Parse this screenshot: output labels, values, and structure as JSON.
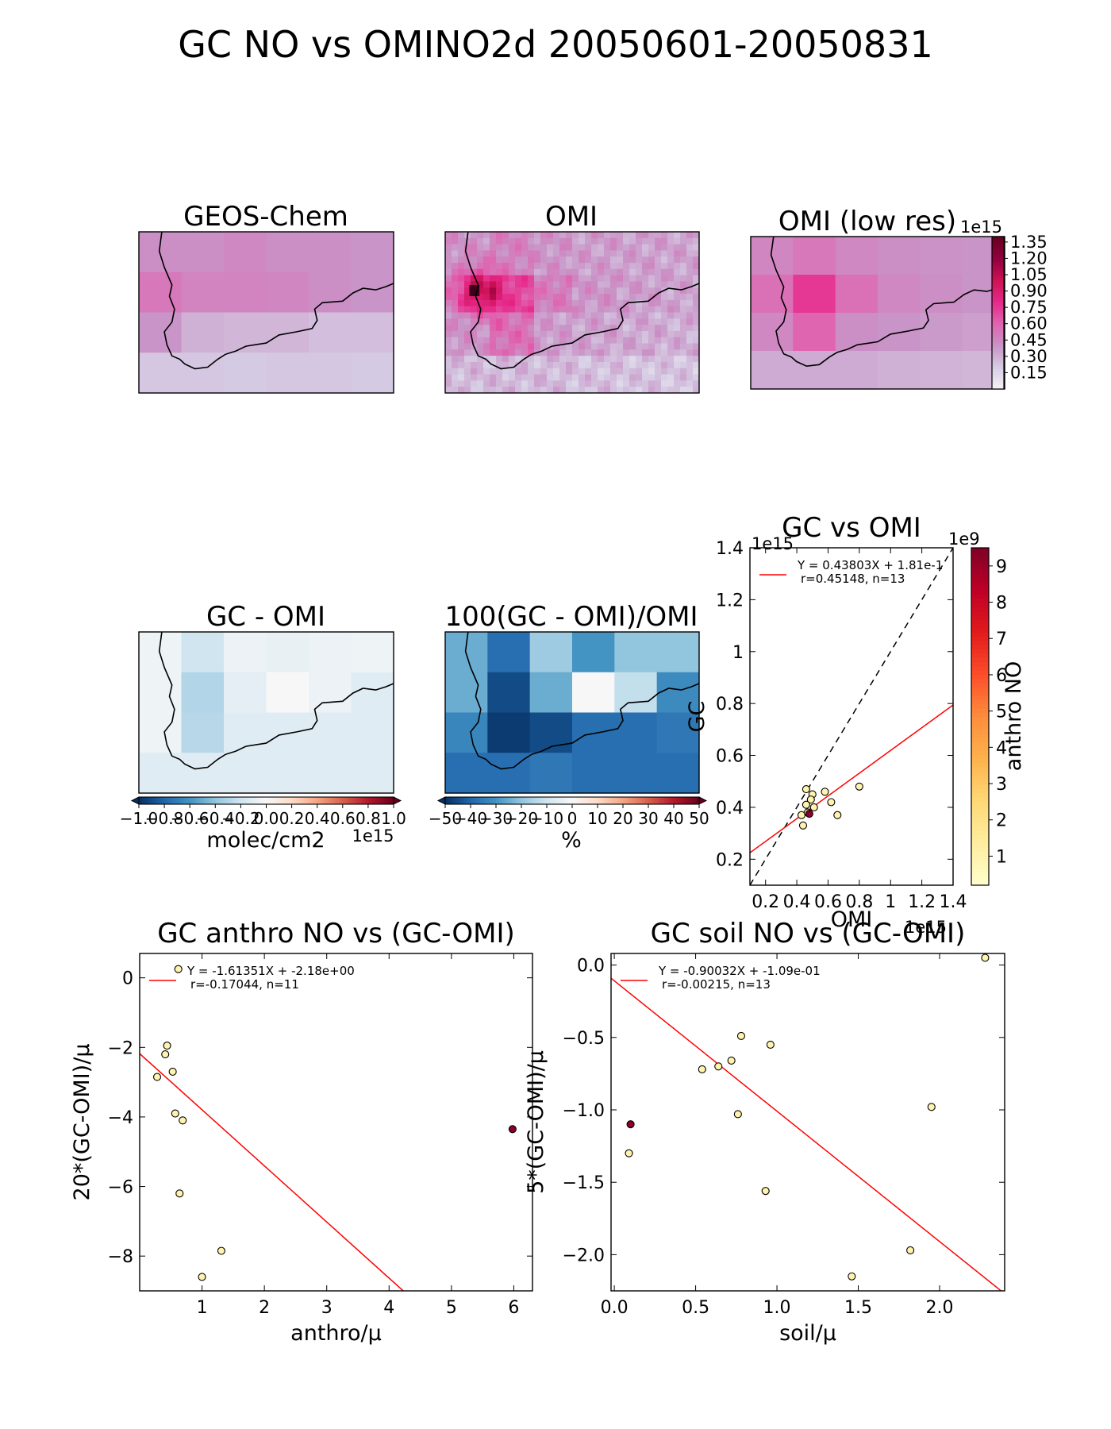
{
  "figure": {
    "suptitle": "GC NO vs OMINO2d 20050601-20050831"
  },
  "panels": {
    "gc_map": {
      "title": "GEOS-Chem"
    },
    "omi_map": {
      "title": "OMI"
    },
    "omi_low": {
      "title": "OMI (low res)"
    },
    "diff_map": {
      "title": "GC - OMI"
    },
    "pct_map": {
      "title": "100(GC - OMI)/OMI"
    }
  },
  "colorbars": {
    "conc": {
      "ticks": [
        "0.15",
        "0.30",
        "0.45",
        "0.60",
        "0.75",
        "0.90",
        "1.05",
        "1.20",
        "1.35"
      ],
      "offset": "1e15",
      "colors": [
        "#f7f1f7",
        "#d6cde4",
        "#c994c7",
        "#df65b0",
        "#e7298a",
        "#ce1256",
        "#91003f",
        "#67001f"
      ]
    },
    "diff": {
      "ticks": [
        "−1.0",
        "−0.8",
        "−0.6",
        "−0.4",
        "−0.2",
        "0.0",
        "0.2",
        "0.4",
        "0.6",
        "0.8",
        "1.0"
      ],
      "label": "molec/cm2",
      "offset": "1e15"
    },
    "pct": {
      "ticks": [
        "−50",
        "−40",
        "−30",
        "−20",
        "−10",
        "0",
        "10",
        "20",
        "30",
        "40",
        "50"
      ],
      "label": "%"
    },
    "anthro": {
      "ticks": [
        "1",
        "2",
        "3",
        "4",
        "5",
        "6",
        "7",
        "8",
        "9"
      ],
      "label": "anthro NO",
      "offset": "1e9"
    }
  },
  "chart_data": [
    {
      "id": "gc_vs_omi",
      "type": "scatter",
      "title": "GC vs OMI",
      "xlabel": "OMI",
      "ylabel": "GC",
      "x_offset": "1e15",
      "y_offset": "1e15",
      "xlim": [
        0.1,
        1.4
      ],
      "ylim": [
        0.1,
        1.4
      ],
      "xticks": [
        0.2,
        0.4,
        0.6,
        0.8,
        1.0,
        1.2,
        1.4
      ],
      "yticks": [
        0.2,
        0.4,
        0.6,
        0.8,
        1.0,
        1.2,
        1.4
      ],
      "points": [
        {
          "x": 0.46,
          "y": 0.47,
          "c": 1.0
        },
        {
          "x": 0.5,
          "y": 0.45,
          "c": 1.0
        },
        {
          "x": 0.58,
          "y": 0.46,
          "c": 1.0
        },
        {
          "x": 0.8,
          "y": 0.48,
          "c": 1.0
        },
        {
          "x": 0.49,
          "y": 0.43,
          "c": 1.0
        },
        {
          "x": 0.62,
          "y": 0.42,
          "c": 1.0
        },
        {
          "x": 0.46,
          "y": 0.41,
          "c": 1.0
        },
        {
          "x": 0.51,
          "y": 0.4,
          "c": 1.0
        },
        {
          "x": 0.43,
          "y": 0.37,
          "c": 1.0
        },
        {
          "x": 0.66,
          "y": 0.37,
          "c": 1.0
        },
        {
          "x": 0.44,
          "y": 0.33,
          "c": 1.0
        },
        {
          "x": 0.47,
          "y": 0.38,
          "c": 1.0
        },
        {
          "x": 0.48,
          "y": 0.375,
          "c": 9.3
        }
      ],
      "fit": {
        "slope": 0.43803,
        "intercept": 0.181,
        "label_line1": "Y = 0.43803X + 1.81e-1",
        "label_line2": "r=0.45148, n=13"
      },
      "one_to_one": true
    },
    {
      "id": "anthro_vs_diff",
      "type": "scatter",
      "title": "GC anthro NO vs (GC-OMI)",
      "xlabel": "anthro/μ",
      "ylabel": "20*(GC-OMI)/μ",
      "xlim": [
        0,
        6.3
      ],
      "ylim": [
        -9.0,
        0.7
      ],
      "xticks": [
        1,
        2,
        3,
        4,
        5,
        6
      ],
      "yticks": [
        0,
        -2,
        -4,
        -6,
        -8
      ],
      "points": [
        {
          "x": 0.62,
          "y": 0.25,
          "c": 1.0
        },
        {
          "x": 0.44,
          "y": -1.95,
          "c": 1.0
        },
        {
          "x": 0.41,
          "y": -2.2,
          "c": 1.0
        },
        {
          "x": 0.53,
          "y": -2.7,
          "c": 1.0
        },
        {
          "x": 0.28,
          "y": -2.85,
          "c": 1.0
        },
        {
          "x": 0.57,
          "y": -3.9,
          "c": 1.0
        },
        {
          "x": 0.69,
          "y": -4.1,
          "c": 1.0
        },
        {
          "x": 0.64,
          "y": -6.2,
          "c": 1.0
        },
        {
          "x": 1.31,
          "y": -7.85,
          "c": 1.0
        },
        {
          "x": 1.0,
          "y": -8.6,
          "c": 1.0
        },
        {
          "x": 5.98,
          "y": -4.35,
          "c": 9.3
        }
      ],
      "fit": {
        "slope": -1.61351,
        "intercept": -2.18,
        "label_line1": "Y = -1.61351X + -2.18e+00",
        "label_line2": "r=-0.17044, n=11"
      }
    },
    {
      "id": "soil_vs_diff",
      "type": "scatter",
      "title": "GC soil NO vs (GC-OMI)",
      "xlabel": "soil/μ",
      "ylabel": "5*(GC-OMI)/μ",
      "xlim": [
        -0.02,
        2.4
      ],
      "ylim": [
        -2.25,
        0.08
      ],
      "xticks": [
        0.0,
        0.5,
        1.0,
        1.5,
        2.0
      ],
      "xticklabels": [
        "0.0",
        "0.5",
        "1.0",
        "1.5",
        "2.0"
      ],
      "yticks": [
        0.0,
        -0.5,
        -1.0,
        -1.5,
        -2.0
      ],
      "yticklabels": [
        "0.0",
        "−0.5",
        "−1.0",
        "−1.5",
        "−2.0"
      ],
      "points": [
        {
          "x": 2.28,
          "y": 0.05,
          "c": 1.0
        },
        {
          "x": 0.78,
          "y": -0.49,
          "c": 1.0
        },
        {
          "x": 0.96,
          "y": -0.55,
          "c": 1.0
        },
        {
          "x": 0.72,
          "y": -0.66,
          "c": 1.0
        },
        {
          "x": 0.64,
          "y": -0.7,
          "c": 1.0
        },
        {
          "x": 0.54,
          "y": -0.72,
          "c": 1.0
        },
        {
          "x": 1.95,
          "y": -0.98,
          "c": 1.0
        },
        {
          "x": 0.76,
          "y": -1.03,
          "c": 1.0
        },
        {
          "x": 0.09,
          "y": -1.3,
          "c": 1.0
        },
        {
          "x": 0.93,
          "y": -1.56,
          "c": 1.0
        },
        {
          "x": 1.82,
          "y": -1.97,
          "c": 1.0
        },
        {
          "x": 1.46,
          "y": -2.15,
          "c": 1.0
        },
        {
          "x": 0.1,
          "y": -1.1,
          "c": 9.3
        }
      ],
      "fit": {
        "slope": -0.90032,
        "intercept": -0.109,
        "label_line1": "Y = -0.90032X + -1.09e-01",
        "label_line2": "r=-0.00215, n=13"
      }
    },
    {
      "id": "gc_map_grid",
      "type": "heatmap",
      "colormap": "RdPu",
      "vmin": 0.0,
      "vmax": 1.4,
      "values": [
        [
          0.42,
          0.42,
          0.45,
          0.42,
          0.42,
          0.4
        ],
        [
          0.52,
          0.47,
          0.47,
          0.46,
          0.42,
          0.4
        ],
        [
          0.4,
          0.3,
          0.28,
          0.28,
          0.25,
          0.25
        ],
        [
          0.22,
          0.22,
          0.21,
          0.22,
          0.22,
          0.21
        ]
      ]
    },
    {
      "id": "omi_low_grid",
      "type": "heatmap",
      "colormap": "RdPu",
      "vmin": 0.0,
      "vmax": 1.4,
      "values": [
        [
          0.46,
          0.52,
          0.45,
          0.42,
          0.41,
          0.4
        ],
        [
          0.55,
          0.75,
          0.55,
          0.45,
          0.42,
          0.4
        ],
        [
          0.45,
          0.6,
          0.42,
          0.4,
          0.38,
          0.36
        ],
        [
          0.32,
          0.32,
          0.32,
          0.3,
          0.29,
          0.28
        ]
      ]
    },
    {
      "id": "diff_grid",
      "type": "heatmap",
      "colormap": "RdBu_r",
      "vmin": -1.0,
      "vmax": 1.0,
      "values": [
        [
          -0.05,
          -0.2,
          -0.06,
          -0.08,
          -0.06,
          -0.05
        ],
        [
          -0.05,
          -0.3,
          -0.1,
          0.0,
          -0.06,
          -0.12
        ],
        [
          -0.05,
          -0.28,
          -0.12,
          -0.12,
          -0.12,
          -0.12
        ],
        [
          -0.12,
          -0.12,
          -0.12,
          -0.12,
          -0.12,
          -0.12
        ]
      ]
    },
    {
      "id": "pct_grid",
      "type": "heatmap",
      "colormap": "RdBu_r",
      "vmin": -50,
      "vmax": 50,
      "values": [
        [
          -25,
          -38,
          -18,
          -30,
          -20,
          -20
        ],
        [
          -25,
          -45,
          -25,
          0,
          -12,
          -32
        ],
        [
          -33,
          -48,
          -45,
          -38,
          -38,
          -36
        ],
        [
          -38,
          -38,
          -36,
          -38,
          -38,
          -38
        ]
      ]
    }
  ]
}
